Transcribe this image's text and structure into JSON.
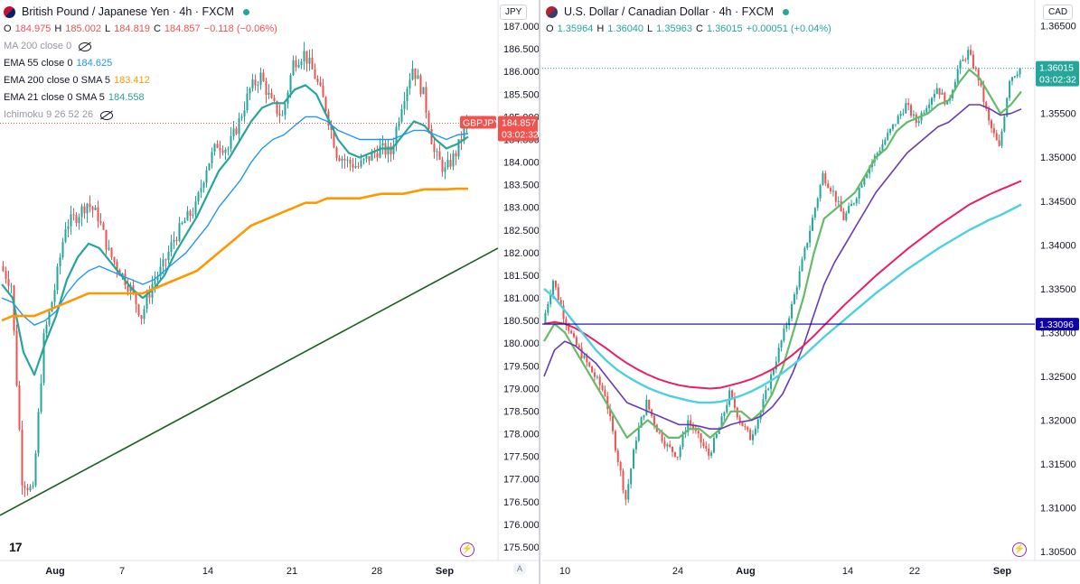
{
  "left": {
    "title": "British Pound / Japanese Yen · 4h · FXCM",
    "currency": "JPY",
    "ohlc": {
      "o_label": "O",
      "o": "184.975",
      "h_label": "H",
      "h": "185.002",
      "l_label": "L",
      "l": "184.819",
      "c_label": "C",
      "c": "184.857",
      "chg": "−0.118 (−0.06%)"
    },
    "indicators": [
      {
        "label": "MA 200 close 0",
        "value": "",
        "color": "#9598a1",
        "hidden": true
      },
      {
        "label": "EMA 55 close 0",
        "value": "184.625",
        "color": "#2196f3"
      },
      {
        "label": "EMA 200 close 0 SMA 5",
        "value": "183.412",
        "color": "#ff9800"
      },
      {
        "label": "EMA 21 close 0 SMA 5",
        "value": "184.558",
        "color": "#26a69a"
      },
      {
        "label": "Ichimoku 9 26 52 26",
        "value": "",
        "color": "#9598a1",
        "hidden": true
      }
    ],
    "price_tag": {
      "symbol": "GBPJPY",
      "price": "184.857",
      "countdown": "03:02:32",
      "color": "#ef5350"
    },
    "y_ticks": [
      "187.000",
      "186.500",
      "186.000",
      "185.500",
      "185.000",
      "184.500",
      "184.000",
      "183.500",
      "183.000",
      "182.500",
      "182.000",
      "181.500",
      "181.000",
      "180.500",
      "180.000",
      "179.500",
      "179.000",
      "178.500",
      "178.000",
      "177.500",
      "177.000",
      "176.500",
      "176.000",
      "175.500"
    ],
    "x_ticks": [
      "Aug",
      "7",
      "14",
      "21",
      "28",
      "Sep"
    ],
    "logo": "17",
    "auto_btn": "A"
  },
  "right": {
    "title": "U.S. Dollar / Canadian Dollar · 4h · FXCM",
    "currency": "CAD",
    "ohlc": {
      "o_label": "O",
      "o": "1.35964",
      "h_label": "H",
      "h": "1.36040",
      "l_label": "L",
      "l": "1.35963",
      "c_label": "C",
      "c": "1.36015",
      "chg": "+0.00051 (+0.04%)"
    },
    "price_tag": {
      "price": "1.36015",
      "countdown": "03:02:32",
      "color": "#26a69a"
    },
    "hline_tag": {
      "price": "1.33096",
      "color": "#0d00a8"
    },
    "y_ticks": [
      "1.36500",
      "1.36000",
      "1.35500",
      "1.35000",
      "1.34500",
      "1.34000",
      "1.33500",
      "1.33000",
      "1.32500",
      "1.32000",
      "1.31500",
      "1.31000",
      "1.30500"
    ],
    "x_ticks": [
      "10",
      "24",
      "Aug",
      "14",
      "22",
      "Sep"
    ]
  },
  "chart_data": [
    {
      "type": "candlestick",
      "title": "British Pound / Japanese Yen · 4h · FXCM",
      "ylabel": "JPY",
      "ylim": [
        175.3,
        187.3
      ],
      "grid": false,
      "x_ticks": [
        "Aug",
        "7",
        "14",
        "21",
        "28",
        "Sep"
      ],
      "close_path": [
        181.7,
        181.3,
        177.0,
        176.7,
        180.1,
        181.2,
        182.6,
        182.8,
        183.1,
        182.8,
        182.0,
        181.6,
        181.2,
        180.6,
        181.3,
        181.7,
        182.3,
        182.7,
        183.0,
        183.9,
        184.4,
        184.3,
        184.9,
        185.6,
        185.9,
        185.3,
        185.0,
        186.2,
        186.4,
        185.9,
        185.2,
        184.2,
        184.0,
        183.9,
        184.1,
        184.3,
        184.2,
        185.3,
        186.1,
        185.5,
        184.2,
        183.8,
        184.2,
        184.86
      ],
      "series": [
        {
          "name": "EMA 21 close 0 SMA 5",
          "color": "#26a69a",
          "values": [
            181.3,
            181.0,
            179.8,
            179.3,
            180.0,
            180.6,
            181.4,
            181.9,
            182.2,
            182.1,
            181.8,
            181.5,
            181.2,
            181.0,
            181.2,
            181.5,
            182.0,
            182.4,
            182.8,
            183.3,
            183.8,
            184.1,
            184.5,
            184.9,
            185.2,
            185.3,
            185.3,
            185.6,
            185.7,
            185.5,
            185.0,
            184.5,
            184.2,
            184.1,
            184.2,
            184.3,
            184.3,
            184.6,
            184.9,
            184.8,
            184.5,
            184.3,
            184.4,
            184.56
          ]
        },
        {
          "name": "EMA 55 close 0",
          "color": "#2196f3",
          "values": [
            181.0,
            180.9,
            180.6,
            180.4,
            180.5,
            180.7,
            181.1,
            181.4,
            181.6,
            181.7,
            181.6,
            181.5,
            181.4,
            181.3,
            181.4,
            181.6,
            181.8,
            182.0,
            182.3,
            182.6,
            183.0,
            183.3,
            183.6,
            184.0,
            184.3,
            184.5,
            184.6,
            184.8,
            185.0,
            185.0,
            184.9,
            184.7,
            184.6,
            184.5,
            184.5,
            184.5,
            184.5,
            184.6,
            184.7,
            184.7,
            184.6,
            184.5,
            184.6,
            184.63
          ]
        },
        {
          "name": "EMA 200 close 0 SMA 5",
          "color": "#ff9800",
          "values": [
            180.5,
            180.6,
            180.6,
            180.6,
            180.7,
            180.8,
            180.9,
            181.0,
            181.1,
            181.1,
            181.1,
            181.1,
            181.1,
            181.1,
            181.2,
            181.3,
            181.4,
            181.5,
            181.6,
            181.8,
            182.0,
            182.2,
            182.4,
            182.6,
            182.7,
            182.8,
            182.9,
            183.0,
            183.1,
            183.1,
            183.2,
            183.2,
            183.2,
            183.2,
            183.25,
            183.3,
            183.3,
            183.3,
            183.35,
            183.4,
            183.4,
            183.4,
            183.41,
            183.41
          ]
        },
        {
          "name": "Trendline",
          "color": "#1b5e20",
          "values": [
            176.2,
            182.1
          ]
        }
      ],
      "last": {
        "price": 184.857,
        "symbol": "GBPJPY"
      }
    },
    {
      "type": "candlestick",
      "title": "U.S. Dollar / Canadian Dollar · 4h · FXCM",
      "ylabel": "CAD",
      "ylim": [
        1.3045,
        1.3665
      ],
      "grid": false,
      "x_ticks": [
        "10",
        "24",
        "Aug",
        "14",
        "22",
        "Sep"
      ],
      "close_path": [
        1.331,
        1.336,
        1.332,
        1.329,
        1.327,
        1.325,
        1.323,
        1.317,
        1.311,
        1.318,
        1.322,
        1.319,
        1.317,
        1.316,
        1.32,
        1.318,
        1.316,
        1.319,
        1.323,
        1.32,
        1.318,
        1.321,
        1.325,
        1.329,
        1.333,
        1.338,
        1.343,
        1.348,
        1.346,
        1.343,
        1.345,
        1.348,
        1.35,
        1.352,
        1.354,
        1.356,
        1.354,
        1.356,
        1.358,
        1.356,
        1.36,
        1.362,
        1.359,
        1.354,
        1.351,
        1.359,
        1.36015
      ],
      "series": [
        {
          "name": "",
          "color": "#66bb6a",
          "values": [
            1.329,
            1.331,
            1.33,
            1.328,
            1.326,
            1.324,
            1.322,
            1.32,
            1.318,
            1.319,
            1.32,
            1.319,
            1.318,
            1.318,
            1.319,
            1.319,
            1.318,
            1.319,
            1.321,
            1.321,
            1.32,
            1.321,
            1.323,
            1.326,
            1.33,
            1.334,
            1.339,
            1.343,
            1.344,
            1.345,
            1.346,
            1.348,
            1.35,
            1.351,
            1.353,
            1.354,
            1.3545,
            1.355,
            1.356,
            1.3565,
            1.3585,
            1.36,
            1.359,
            1.357,
            1.355,
            1.356,
            1.3575
          ]
        },
        {
          "name": "",
          "color": "#673ab7",
          "values": [
            1.325,
            1.328,
            1.329,
            1.3285,
            1.3275,
            1.3265,
            1.325,
            1.3235,
            1.322,
            1.3215,
            1.321,
            1.3205,
            1.32,
            1.3195,
            1.3195,
            1.3193,
            1.319,
            1.319,
            1.3195,
            1.3198,
            1.32,
            1.3205,
            1.3215,
            1.323,
            1.3255,
            1.3285,
            1.332,
            1.3355,
            1.338,
            1.34,
            1.342,
            1.344,
            1.346,
            1.3475,
            1.349,
            1.3505,
            1.3515,
            1.3525,
            1.3535,
            1.354,
            1.355,
            1.356,
            1.356,
            1.3555,
            1.3548,
            1.355,
            1.3555
          ]
        },
        {
          "name": "",
          "color": "#e91e63",
          "values": [
            1.331,
            1.3312,
            1.331,
            1.3305,
            1.3298,
            1.329,
            1.3282,
            1.3273,
            1.3265,
            1.3258,
            1.3252,
            1.3247,
            1.3243,
            1.324,
            1.3238,
            1.3237,
            1.3236,
            1.3237,
            1.324,
            1.3243,
            1.3247,
            1.3252,
            1.3258,
            1.3266,
            1.3275,
            1.3285,
            1.3296,
            1.3308,
            1.332,
            1.3332,
            1.3343,
            1.3354,
            1.3365,
            1.3375,
            1.3385,
            1.3395,
            1.3404,
            1.3413,
            1.3422,
            1.343,
            1.3438,
            1.3446,
            1.3452,
            1.3458,
            1.3463,
            1.3468,
            1.3473
          ]
        },
        {
          "name": "",
          "color": "#4dd0e1",
          "values": [
            1.335,
            1.334,
            1.3325,
            1.331,
            1.3295,
            1.328,
            1.3268,
            1.3258,
            1.325,
            1.3243,
            1.3237,
            1.3232,
            1.3228,
            1.3225,
            1.3222,
            1.322,
            1.322,
            1.3221,
            1.3224,
            1.3228,
            1.3233,
            1.3239,
            1.3246,
            1.3254,
            1.3263,
            1.3273,
            1.3284,
            1.3295,
            1.3305,
            1.3315,
            1.3325,
            1.3335,
            1.3345,
            1.3354,
            1.3363,
            1.3372,
            1.338,
            1.3388,
            1.3396,
            1.3403,
            1.341,
            1.3417,
            1.3423,
            1.3429,
            1.3434,
            1.344,
            1.3446
          ]
        }
      ],
      "hline": 1.33096,
      "last": {
        "price": 1.36015
      }
    }
  ]
}
